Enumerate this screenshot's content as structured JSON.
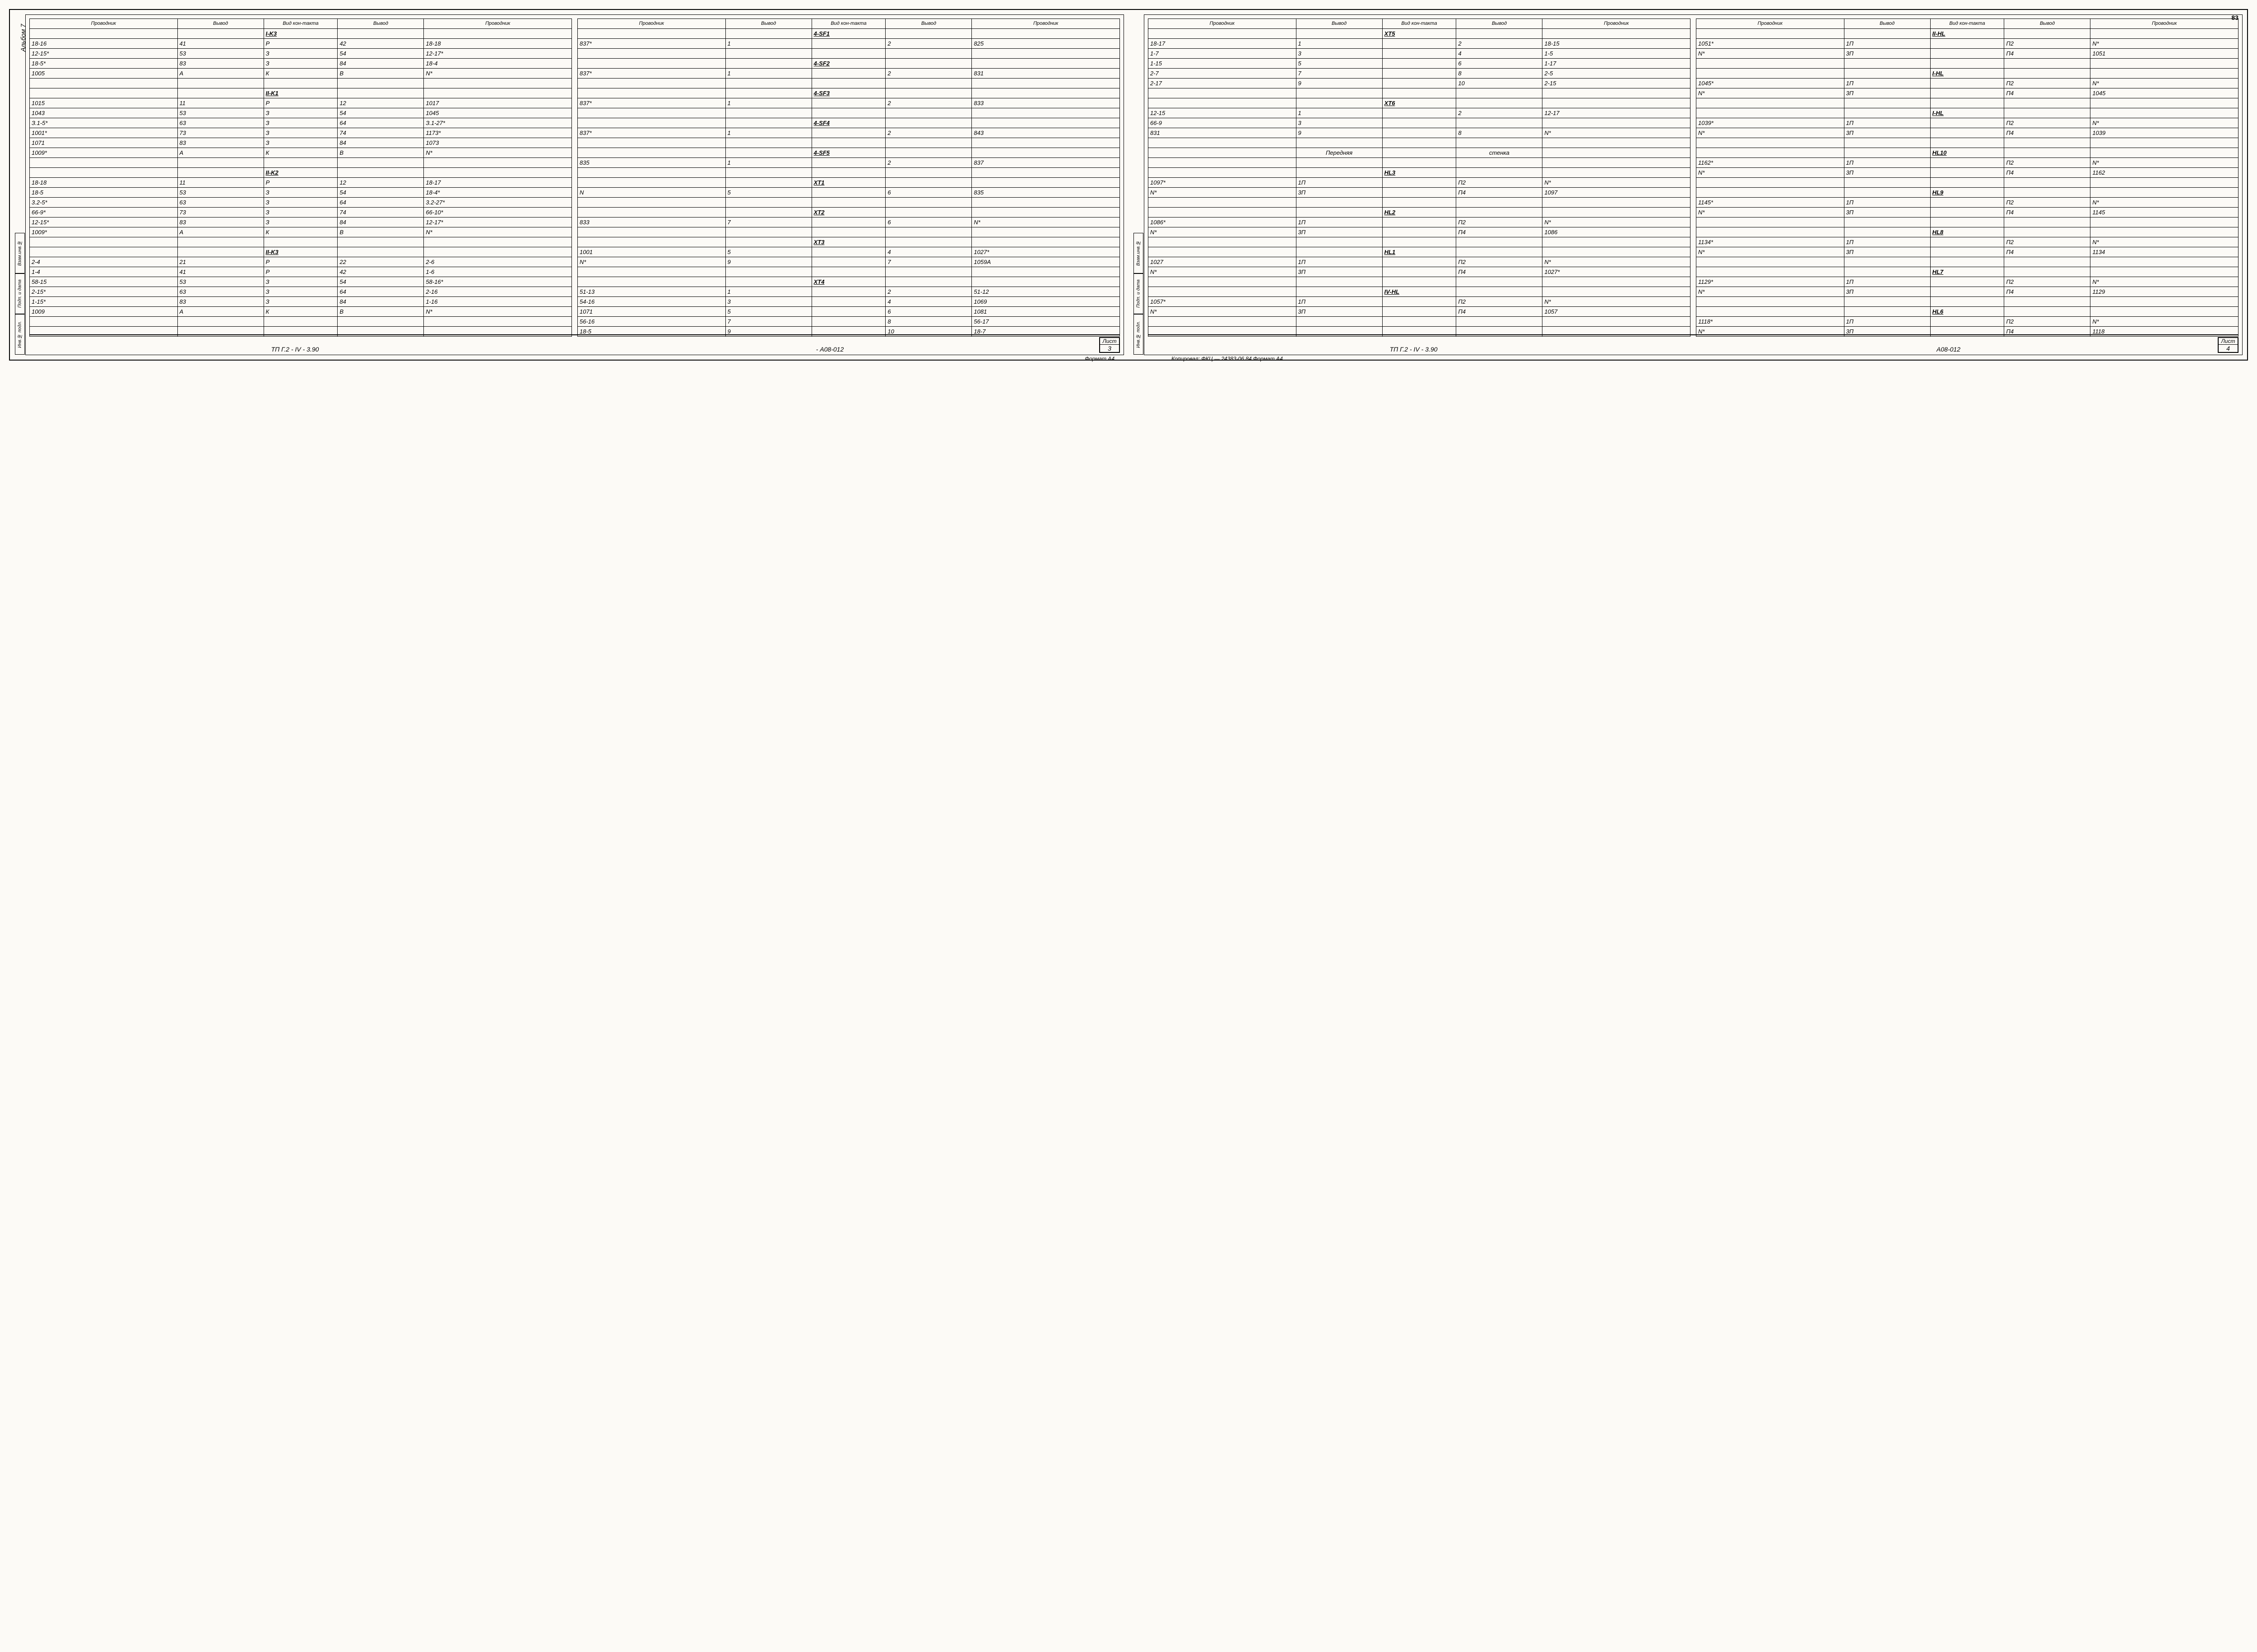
{
  "global": {
    "page_number": "83",
    "album_label": "Альбом 7",
    "side_stamps": [
      "Инв.№ подл.",
      "Подп. и дата",
      "Взам.инв.№"
    ],
    "col_headers": [
      "Проводник",
      "Вывод",
      "Вид кон-такта",
      "Вывод",
      "Проводник"
    ],
    "format_note": "Формат А4",
    "copy_note": "Копировал: ФКЦ —   24383-06  84  Формат А4"
  },
  "page_left": {
    "title": "ТП   Г.2 - IV - 3.90",
    "doc": "- А08-012",
    "list_label": "Лист",
    "list_num": "3",
    "tables": [
      {
        "rows": [
          [
            "",
            "",
            "I-K3",
            "",
            ""
          ],
          [
            "18-16",
            "41",
            "Р",
            "42",
            "18-18"
          ],
          [
            "12-15*",
            "53",
            "З",
            "54",
            "12-17*"
          ],
          [
            "18-5*",
            "83",
            "З",
            "84",
            "18-4"
          ],
          [
            "1005",
            "А",
            "К",
            "В",
            "N*"
          ],
          [
            "",
            "",
            "",
            "",
            ""
          ],
          [
            "",
            "",
            "II-K1",
            "",
            ""
          ],
          [
            "1015",
            "11",
            "Р",
            "12",
            "1017"
          ],
          [
            "1043",
            "53",
            "З",
            "54",
            "1045"
          ],
          [
            "З.1-5*",
            "63",
            "З",
            "64",
            "З.1-27*"
          ],
          [
            "1001*",
            "73",
            "З",
            "74",
            "1173*"
          ],
          [
            "1071",
            "83",
            "З",
            "84",
            "1073"
          ],
          [
            "1009*",
            "А",
            "К",
            "В",
            "N*"
          ],
          [
            "",
            "",
            "",
            "",
            ""
          ],
          [
            "",
            "",
            "II-K2",
            "",
            ""
          ],
          [
            "18-18",
            "11",
            "Р",
            "12",
            "18-17"
          ],
          [
            "18-5",
            "53",
            "З",
            "54",
            "18-4*"
          ],
          [
            "3.2-5*",
            "63",
            "З",
            "64",
            "3.2-27*"
          ],
          [
            "66-9*",
            "73",
            "З",
            "74",
            "66-10*"
          ],
          [
            "12-15*",
            "83",
            "З",
            "84",
            "12-17*"
          ],
          [
            "1009*",
            "А",
            "К",
            "В",
            "N*"
          ],
          [
            "",
            "",
            "",
            "",
            ""
          ],
          [
            "",
            "",
            "II-K3",
            "",
            ""
          ],
          [
            "2-4",
            "21",
            "Р",
            "22",
            "2-6"
          ],
          [
            "1-4",
            "41",
            "Р",
            "42",
            "1-6"
          ],
          [
            "58-15",
            "53",
            "З",
            "54",
            "58-16*"
          ],
          [
            "2-15*",
            "63",
            "З",
            "64",
            "2-16"
          ],
          [
            "1-15*",
            "83",
            "З",
            "84",
            "1-16"
          ],
          [
            "1009",
            "А",
            "К",
            "В",
            "N*"
          ],
          [
            "",
            "",
            "",
            "",
            ""
          ],
          [
            "",
            "",
            "",
            "",
            ""
          ]
        ],
        "header_rows": [
          0,
          6,
          14,
          22
        ]
      },
      {
        "rows": [
          [
            "",
            "",
            "4-SF1",
            "",
            ""
          ],
          [
            "837*",
            "1",
            "",
            "2",
            "825"
          ],
          [
            "",
            "",
            "",
            "",
            ""
          ],
          [
            "",
            "",
            "4-SF2",
            "",
            ""
          ],
          [
            "837*",
            "1",
            "",
            "2",
            "831"
          ],
          [
            "",
            "",
            "",
            "",
            ""
          ],
          [
            "",
            "",
            "4-SF3",
            "",
            ""
          ],
          [
            "837*",
            "1",
            "",
            "2",
            "833"
          ],
          [
            "",
            "",
            "",
            "",
            ""
          ],
          [
            "",
            "",
            "4-SF4",
            "",
            ""
          ],
          [
            "837*",
            "1",
            "",
            "2",
            "843"
          ],
          [
            "",
            "",
            "",
            "",
            ""
          ],
          [
            "",
            "",
            "4-SF5",
            "",
            ""
          ],
          [
            "835",
            "1",
            "",
            "2",
            "837"
          ],
          [
            "",
            "",
            "",
            "",
            ""
          ],
          [
            "",
            "",
            "XT1",
            "",
            ""
          ],
          [
            "N",
            "5",
            "",
            "6",
            "835"
          ],
          [
            "",
            "",
            "",
            "",
            ""
          ],
          [
            "",
            "",
            "XT2",
            "",
            ""
          ],
          [
            "833",
            "7",
            "",
            "6",
            "N*"
          ],
          [
            "",
            "",
            "",
            "",
            ""
          ],
          [
            "",
            "",
            "XT3",
            "",
            ""
          ],
          [
            "1001",
            "5",
            "",
            "4",
            "1027*"
          ],
          [
            "N*",
            "9",
            "",
            "7",
            "1059А"
          ],
          [
            "",
            "",
            "",
            "",
            ""
          ],
          [
            "",
            "",
            "XT4",
            "",
            ""
          ],
          [
            "51-13",
            "1",
            "",
            "2",
            "51-12"
          ],
          [
            "54-16",
            "3",
            "",
            "4",
            "1069"
          ],
          [
            "1071",
            "5",
            "",
            "6",
            "1081"
          ],
          [
            "56-16",
            "7",
            "",
            "8",
            "56-17"
          ],
          [
            "18-5",
            "9",
            "",
            "10",
            "18-7"
          ]
        ],
        "header_rows": [
          0,
          3,
          6,
          9,
          12,
          15,
          18,
          21,
          25
        ]
      }
    ]
  },
  "page_right": {
    "title": "ТП    Г.2 - IV - 3.90",
    "doc": "А08-012",
    "list_label": "Лист",
    "list_num": "4",
    "tables": [
      {
        "rows": [
          [
            "",
            "",
            "XT5",
            "",
            ""
          ],
          [
            "18-17",
            "1",
            "",
            "2",
            "18-15"
          ],
          [
            "1-7",
            "3",
            "",
            "4",
            "1-5"
          ],
          [
            "1-15",
            "5",
            "",
            "6",
            "1-17"
          ],
          [
            "2-7",
            "7",
            "",
            "8",
            "2-5"
          ],
          [
            "2-17",
            "9",
            "",
            "10",
            "2-15"
          ],
          [
            "",
            "",
            "",
            "",
            ""
          ],
          [
            "",
            "",
            "XT6",
            "",
            ""
          ],
          [
            "12-15",
            "1",
            "",
            "2",
            "12-17"
          ],
          [
            "66-9",
            "3",
            "",
            "",
            ""
          ],
          [
            "831",
            "9",
            "",
            "8",
            "N*"
          ],
          [
            "",
            "",
            "",
            "",
            ""
          ],
          [
            "",
            "Передняя",
            "",
            "стенка",
            ""
          ],
          [
            "",
            "",
            "",
            "",
            ""
          ],
          [
            "",
            "",
            "HL3",
            "",
            ""
          ],
          [
            "1097*",
            "1П",
            "",
            "П2",
            "N*"
          ],
          [
            "N*",
            "3П",
            "",
            "П4",
            "1097"
          ],
          [
            "",
            "",
            "",
            "",
            ""
          ],
          [
            "",
            "",
            "HL2",
            "",
            ""
          ],
          [
            "1086*",
            "1П",
            "",
            "П2",
            "N*"
          ],
          [
            "N*",
            "3П",
            "",
            "П4",
            "1086"
          ],
          [
            "",
            "",
            "",
            "",
            ""
          ],
          [
            "",
            "",
            "HL1",
            "",
            ""
          ],
          [
            "1027",
            "1П",
            "",
            "П2",
            "N*"
          ],
          [
            "N*",
            "3П",
            "",
            "П4",
            "1027*"
          ],
          [
            "",
            "",
            "",
            "",
            ""
          ],
          [
            "",
            "",
            "IV-HL",
            "",
            ""
          ],
          [
            "1057*",
            "1П",
            "",
            "П2",
            "N*"
          ],
          [
            "N*",
            "3П",
            "",
            "П4",
            "1057"
          ],
          [
            "",
            "",
            "",
            "",
            ""
          ],
          [
            "",
            "",
            "",
            "",
            ""
          ]
        ],
        "header_rows": [
          0,
          7,
          12,
          14,
          18,
          22,
          26
        ]
      },
      {
        "rows": [
          [
            "",
            "",
            "II-HL",
            "",
            ""
          ],
          [
            "1051*",
            "1П",
            "",
            "П2",
            "N*"
          ],
          [
            "N*",
            "3П",
            "",
            "П4",
            "1051"
          ],
          [
            "",
            "",
            "",
            "",
            ""
          ],
          [
            "",
            "",
            "I-HL",
            "",
            ""
          ],
          [
            "1045*",
            "1П",
            "",
            "П2",
            "N*"
          ],
          [
            "N*",
            "3П",
            "",
            "П4",
            "1045"
          ],
          [
            "",
            "",
            "",
            "",
            ""
          ],
          [
            "",
            "",
            "I-HL",
            "",
            ""
          ],
          [
            "1039*",
            "1П",
            "",
            "П2",
            "N*"
          ],
          [
            "N*",
            "3П",
            "",
            "П4",
            "1039"
          ],
          [
            "",
            "",
            "",
            "",
            ""
          ],
          [
            "",
            "",
            "HL10",
            "",
            ""
          ],
          [
            "1162*",
            "1П",
            "",
            "П2",
            "N*"
          ],
          [
            "N*",
            "3П",
            "",
            "П4",
            "1162"
          ],
          [
            "",
            "",
            "",
            "",
            ""
          ],
          [
            "",
            "",
            "HL9",
            "",
            ""
          ],
          [
            "1145*",
            "1П",
            "",
            "П2",
            "N*"
          ],
          [
            "N*",
            "3П",
            "",
            "П4",
            "1145"
          ],
          [
            "",
            "",
            "",
            "",
            ""
          ],
          [
            "",
            "",
            "HL8",
            "",
            ""
          ],
          [
            "1134*",
            "1П",
            "",
            "П2",
            "N*"
          ],
          [
            "N*",
            "3П",
            "",
            "П4",
            "1134"
          ],
          [
            "",
            "",
            "",
            "",
            ""
          ],
          [
            "",
            "",
            "HL7",
            "",
            ""
          ],
          [
            "1129*",
            "1П",
            "",
            "П2",
            "N*"
          ],
          [
            "N*",
            "3П",
            "",
            "П4",
            "1129"
          ],
          [
            "",
            "",
            "",
            "",
            ""
          ],
          [
            "",
            "",
            "HL6",
            "",
            ""
          ],
          [
            "1118*",
            "1П",
            "",
            "П2",
            "N*"
          ],
          [
            "N*",
            "3П",
            "",
            "П4",
            "1118"
          ]
        ],
        "header_rows": [
          0,
          4,
          8,
          12,
          16,
          20,
          24,
          28
        ]
      }
    ]
  }
}
